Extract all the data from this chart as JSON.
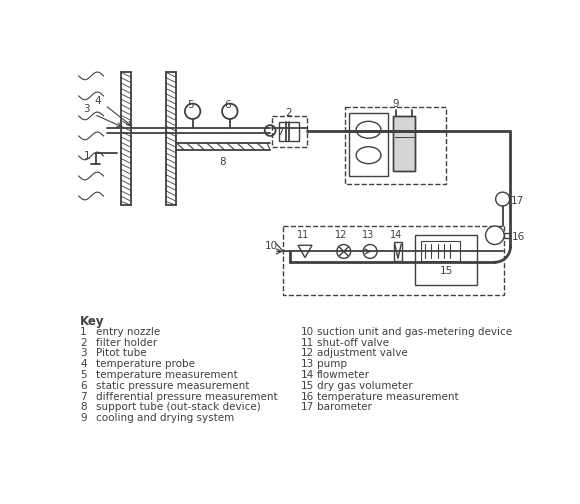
{
  "bg_color": "#ffffff",
  "line_color": "#404040",
  "key_items_left": [
    [
      1,
      "entry nozzle"
    ],
    [
      2,
      "filter holder"
    ],
    [
      3,
      "Pitot tube"
    ],
    [
      4,
      "temperature probe"
    ],
    [
      5,
      "temperature measurement"
    ],
    [
      6,
      "static pressure measurement"
    ],
    [
      7,
      "differential pressure measurement"
    ],
    [
      8,
      "support tube (out-stack device)"
    ],
    [
      9,
      "cooling and drying system"
    ]
  ],
  "key_items_right": [
    [
      10,
      "suction unit and gas-metering device"
    ],
    [
      11,
      "shut-off valve"
    ],
    [
      12,
      "adjustment valve"
    ],
    [
      13,
      "pump"
    ],
    [
      14,
      "flowmeter"
    ],
    [
      15,
      "dry gas volumeter"
    ],
    [
      16,
      "temperature measurement"
    ],
    [
      17,
      "barometer"
    ]
  ]
}
